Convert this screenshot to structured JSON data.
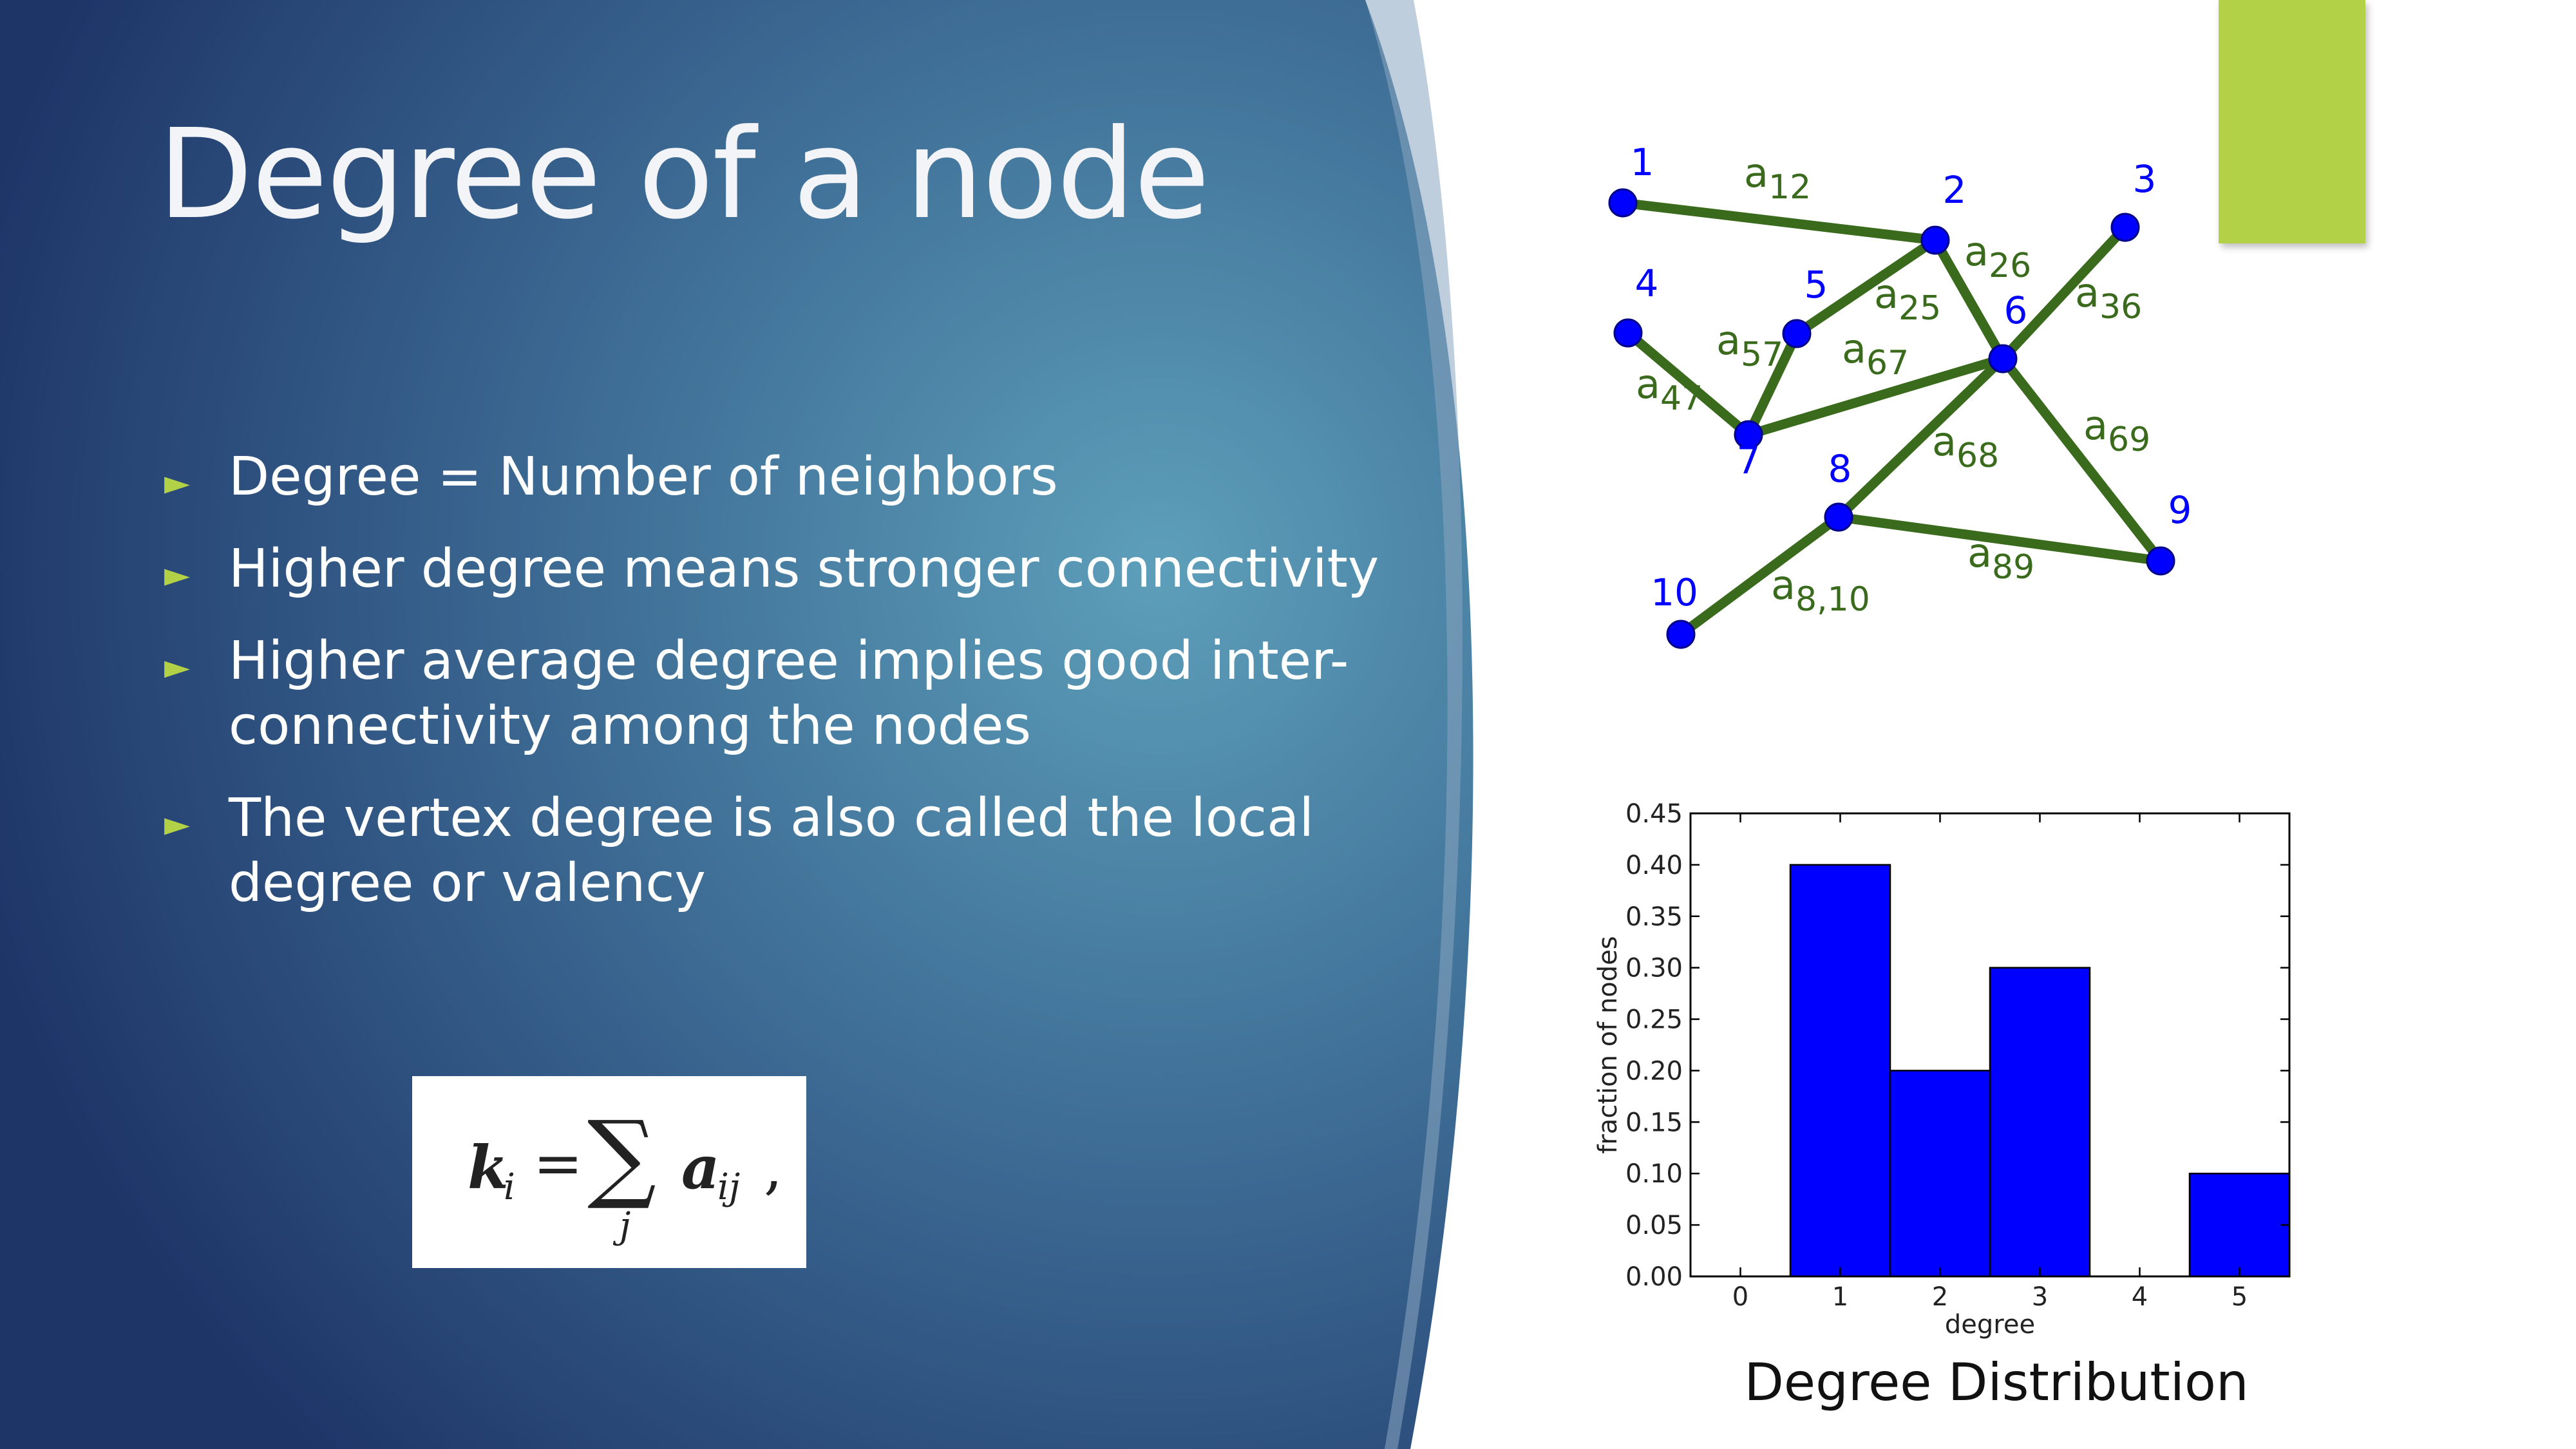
{
  "slide": {
    "title": "Degree of a node",
    "bullets": [
      "Degree = Number of neighbors",
      "Higher degree means stronger connectivity",
      "Higher average degree implies good inter-connectivity among the nodes",
      "The vertex degree is also called the local degree or valency"
    ],
    "bullet_icon": "right-triangle-icon",
    "formula": {
      "lhs_symbol": "k",
      "lhs_subscript": "i",
      "equals": "=",
      "sum_symbol": "∑",
      "sum_index": "j",
      "term_symbol": "a",
      "term_subscript": "ij",
      "trailing": ","
    },
    "colors": {
      "background_dark": "#1f3a6e",
      "background_light": "#5a9bb8",
      "accent": "#b3d146",
      "edge": "#3a6b1c",
      "node": "#0000ff"
    }
  },
  "network": {
    "nodes": [
      {
        "id": "1",
        "label": "1"
      },
      {
        "id": "2",
        "label": "2"
      },
      {
        "id": "3",
        "label": "3"
      },
      {
        "id": "4",
        "label": "4"
      },
      {
        "id": "5",
        "label": "5"
      },
      {
        "id": "6",
        "label": "6"
      },
      {
        "id": "7",
        "label": "7"
      },
      {
        "id": "8",
        "label": "8"
      },
      {
        "id": "9",
        "label": "9"
      },
      {
        "id": "10",
        "label": "10"
      }
    ],
    "edges": [
      {
        "from": "1",
        "to": "2",
        "label": "a",
        "sub": "12"
      },
      {
        "from": "2",
        "to": "5",
        "label": "a",
        "sub": "25"
      },
      {
        "from": "2",
        "to": "6",
        "label": "a",
        "sub": "26"
      },
      {
        "from": "3",
        "to": "6",
        "label": "a",
        "sub": "36"
      },
      {
        "from": "4",
        "to": "7",
        "label": "a",
        "sub": "47"
      },
      {
        "from": "5",
        "to": "7",
        "label": "a",
        "sub": "57"
      },
      {
        "from": "6",
        "to": "7",
        "label": "a",
        "sub": "67"
      },
      {
        "from": "6",
        "to": "8",
        "label": "a",
        "sub": "68"
      },
      {
        "from": "6",
        "to": "9",
        "label": "a",
        "sub": "69"
      },
      {
        "from": "8",
        "to": "9",
        "label": "a",
        "sub": "89"
      },
      {
        "from": "8",
        "to": "10",
        "label": "a",
        "sub": "8,10"
      }
    ]
  },
  "chart_data": {
    "type": "bar",
    "categories": [
      "1",
      "2",
      "3",
      "5"
    ],
    "values": [
      0.4,
      0.2,
      0.3,
      0.1
    ],
    "xlabel": "degree",
    "ylabel": "fraction of nodes",
    "xticks": [
      "0",
      "1",
      "2",
      "3",
      "4",
      "5"
    ],
    "yticks": [
      "0.00",
      "0.05",
      "0.10",
      "0.15",
      "0.20",
      "0.25",
      "0.30",
      "0.35",
      "0.40",
      "0.45"
    ],
    "xlim": [
      -0.5,
      5.5
    ],
    "ylim": [
      0,
      0.45
    ],
    "grid": false,
    "bar_color": "#0000ff",
    "caption": "Degree Distribution"
  }
}
